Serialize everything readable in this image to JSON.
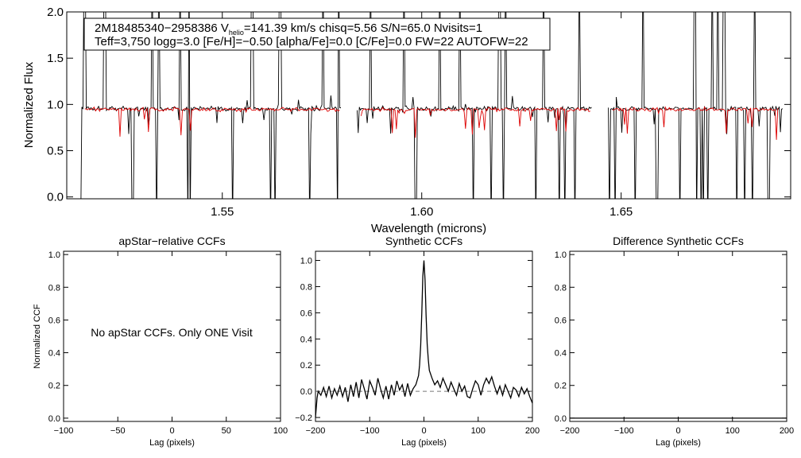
{
  "chart_data": [
    {
      "type": "line",
      "id": "spectrum",
      "xlabel": "Wavelength (microns)",
      "ylabel": "Normalized Flux",
      "xlim": [
        1.511,
        1.6925
      ],
      "ylim": [
        -0.02,
        2.0
      ],
      "xticks": [
        1.55,
        1.6,
        1.65
      ],
      "xtick_labels": [
        "1.55",
        "1.60",
        "1.65"
      ],
      "yticks": [
        0.0,
        0.5,
        1.0,
        1.5,
        2.0
      ],
      "ytick_labels": [
        "0.0",
        "0.5",
        "1.0",
        "1.5",
        "2.0"
      ],
      "annotation": {
        "line1_prefix": "2M18485340−2958386  V",
        "line1_sub": "helio",
        "line1_suffix": "=141.39 km/s  chisq=5.56  S/N=65.0  Nvisits=1",
        "line2": "Teff=3,750 logg=3.0 [Fe/H]=−0.50 [alpha/Fe]=0.0 [C/Fe]=0.0 FW=22 AUTOFW=22"
      },
      "series": [
        {
          "name": "observed",
          "color": "#000000",
          "segments": [
            [
              1.5145,
              1.5798
            ],
            [
              1.5838,
              1.6428
            ],
            [
              1.6468,
              1.6905
            ]
          ]
        },
        {
          "name": "model",
          "color": "#dd0000",
          "segments": [
            [
              1.5155,
              1.5795
            ],
            [
              1.5848,
              1.6425
            ],
            [
              1.6478,
              1.6895
            ]
          ]
        }
      ],
      "features": {
        "spikes": [
          1.5155,
          1.5205,
          1.5325,
          1.5342,
          1.5395,
          1.5415,
          1.5575,
          1.5645,
          1.5752,
          1.5792,
          1.5872,
          1.5955,
          1.6045,
          1.6095,
          1.6195,
          1.621,
          1.6305,
          1.6358,
          1.6395,
          1.6555,
          1.6685,
          1.6728,
          1.6742,
          1.6758,
          1.681,
          1.6835
        ],
        "dips": [
          1.5145,
          1.5275,
          1.5335,
          1.5413,
          1.542,
          1.5525,
          1.562,
          1.5632,
          1.572,
          1.579,
          1.5985,
          1.613,
          1.6175,
          1.6205,
          1.6285,
          1.6345,
          1.6358,
          1.6385,
          1.6428,
          1.647,
          1.6485,
          1.6535,
          1.659,
          1.6648,
          1.669,
          1.67,
          1.6705,
          1.6718,
          1.679,
          1.681,
          1.683,
          1.687
        ]
      }
    },
    {
      "type": "line",
      "id": "apstar-ccf",
      "title": "apStar−relative CCFs",
      "xlabel": "Lag (pixels)",
      "ylabel": "Normalized CCF",
      "xlim": [
        -100,
        100
      ],
      "ylim": [
        -0.02,
        1.02
      ],
      "xticks": [
        -100,
        -50,
        0,
        50,
        100
      ],
      "xtick_labels": [
        "−100",
        "−50",
        "0",
        "50",
        "100"
      ],
      "yticks": [
        0.0,
        0.2,
        0.4,
        0.6,
        0.8,
        1.0
      ],
      "ytick_labels": [
        "0.0",
        "0.2",
        "0.4",
        "0.6",
        "0.8",
        "1.0"
      ],
      "message": "No apStar CCFs.  Only ONE Visit"
    },
    {
      "type": "line",
      "id": "synthetic-ccf",
      "title": "Synthetic CCFs",
      "xlabel": "Lag (pixels)",
      "xlim": [
        -200,
        200
      ],
      "ylim": [
        -0.23,
        1.07
      ],
      "xticks": [
        -200,
        -100,
        0,
        100,
        200
      ],
      "xtick_labels": [
        "−200",
        "−100",
        "0",
        "100",
        "200"
      ],
      "yticks": [
        -0.2,
        0.0,
        0.2,
        0.4,
        0.6,
        0.8,
        1.0
      ],
      "ytick_labels": [
        "−0.2",
        "0.0",
        "0.2",
        "0.4",
        "0.6",
        "0.8",
        "1.0"
      ],
      "zero_line": 0.0,
      "series": [
        {
          "name": "ccf",
          "x": [
            -200,
            -197,
            -195,
            -190,
            -185,
            -180,
            -175,
            -170,
            -165,
            -160,
            -155,
            -150,
            -145,
            -140,
            -135,
            -130,
            -125,
            -120,
            -115,
            -110,
            -105,
            -100,
            -95,
            -90,
            -85,
            -80,
            -75,
            -70,
            -65,
            -60,
            -55,
            -50,
            -45,
            -40,
            -35,
            -30,
            -25,
            -20,
            -15,
            -10,
            -8,
            -6,
            -4,
            -2,
            0,
            2,
            4,
            6,
            8,
            10,
            15,
            20,
            25,
            30,
            35,
            40,
            45,
            50,
            55,
            60,
            65,
            70,
            75,
            80,
            85,
            90,
            95,
            100,
            105,
            110,
            115,
            120,
            125,
            130,
            135,
            140,
            145,
            150,
            155,
            160,
            165,
            170,
            175,
            180,
            185,
            190,
            195,
            200
          ],
          "y": [
            -0.2,
            -0.05,
            0.0,
            -0.03,
            0.03,
            -0.04,
            0.04,
            -0.05,
            0.02,
            -0.03,
            0.04,
            -0.04,
            0.03,
            -0.08,
            0.05,
            -0.04,
            0.07,
            -0.05,
            0.09,
            0.02,
            -0.06,
            0.08,
            0.03,
            -0.03,
            0.1,
            0.02,
            -0.05,
            0.04,
            -0.06,
            0.05,
            -0.03,
            0.08,
            0.01,
            0.05,
            -0.04,
            0.06,
            -0.03,
            0.02,
            0.05,
            0.12,
            0.2,
            0.35,
            0.6,
            0.88,
            1.0,
            0.85,
            0.58,
            0.36,
            0.24,
            0.16,
            0.1,
            0.05,
            0.08,
            0.03,
            0.1,
            0.05,
            0.0,
            0.07,
            0.02,
            -0.03,
            0.06,
            0.0,
            0.04,
            -0.04,
            -0.05,
            0.02,
            0.08,
            0.05,
            -0.03,
            0.05,
            0.1,
            0.06,
            0.11,
            0.04,
            -0.02,
            0.04,
            -0.03,
            0.05,
            0.0,
            -0.05,
            0.03,
            0.01,
            -0.04,
            0.03,
            -0.02,
            0.02,
            -0.04,
            -0.09
          ]
        }
      ]
    },
    {
      "type": "line",
      "id": "difference-ccf",
      "title": "Difference Synthetic CCFs",
      "xlabel": "Lag (pixels)",
      "xlim": [
        -200,
        200
      ],
      "ylim": [
        -0.02,
        1.02
      ],
      "xticks": [
        -200,
        -100,
        0,
        100,
        200
      ],
      "xtick_labels": [
        "−200",
        "−100",
        "0",
        "100",
        "200"
      ],
      "yticks": [
        0.0,
        0.2,
        0.4,
        0.6,
        0.8,
        1.0
      ],
      "ytick_labels": [
        "0.0",
        "0.2",
        "0.4",
        "0.6",
        "0.8",
        "1.0"
      ],
      "series": [
        {
          "name": "difference",
          "x": [
            -200,
            200
          ],
          "y": [
            0.0,
            0.0
          ]
        }
      ]
    }
  ]
}
